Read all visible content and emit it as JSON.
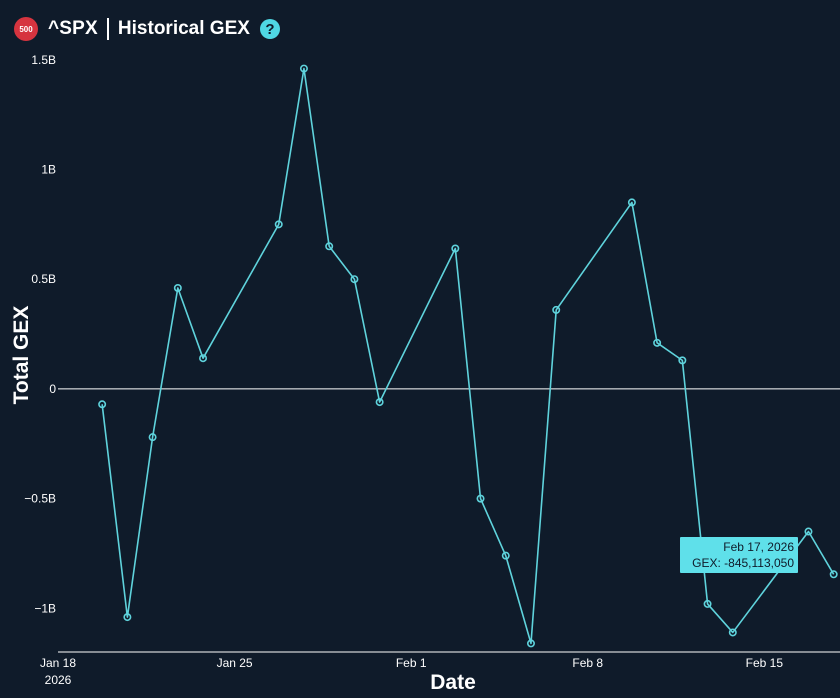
{
  "header": {
    "badge": "500",
    "ticker": "^SPX",
    "title": "Historical GEX",
    "help": "?"
  },
  "colors": {
    "background": "#0f1b2a",
    "line": "#5fd3dc",
    "badge": "#d6343f",
    "help": "#4fd8e4",
    "tooltip_bg": "#5fe0ea",
    "zero_line": "#ffffff"
  },
  "chart_data": {
    "type": "line",
    "title": "",
    "xlabel": "Date",
    "ylabel": "Total GEX",
    "ylim": [
      -1.19,
      1.49
    ],
    "y_unit": "B",
    "yticks": [
      {
        "value": -1,
        "label": "−1B"
      },
      {
        "value": -0.5,
        "label": "−0.5B"
      },
      {
        "value": 0,
        "label": "0"
      },
      {
        "value": 0.5,
        "label": "0.5B"
      },
      {
        "value": 1,
        "label": "1B"
      },
      {
        "value": 1.5,
        "label": "1.5B"
      }
    ],
    "xticks": [
      {
        "date": "2026-01-18",
        "label": "Jan 18",
        "sublabel": "2026"
      },
      {
        "date": "2026-01-25",
        "label": "Jan 25",
        "sublabel": ""
      },
      {
        "date": "2026-02-01",
        "label": "Feb 1",
        "sublabel": ""
      },
      {
        "date": "2026-02-08",
        "label": "Feb 8",
        "sublabel": ""
      },
      {
        "date": "2026-02-15",
        "label": "Feb 15",
        "sublabel": ""
      }
    ],
    "xlim": [
      "2026-01-18",
      "2026-02-18"
    ],
    "grid": false,
    "series": [
      {
        "points": [
          {
            "x": "2026-01-19T18:00",
            "y": -0.07
          },
          {
            "x": "2026-01-20T18:00",
            "y": -1.04
          },
          {
            "x": "2026-01-21T18:00",
            "y": -0.22
          },
          {
            "x": "2026-01-22T18:00",
            "y": 0.46
          },
          {
            "x": "2026-01-23T18:00",
            "y": 0.14
          },
          {
            "x": "2026-01-26T18:00",
            "y": 0.75
          },
          {
            "x": "2026-01-27T18:00",
            "y": 1.46
          },
          {
            "x": "2026-01-28T18:00",
            "y": 0.65
          },
          {
            "x": "2026-01-29T18:00",
            "y": 0.5
          },
          {
            "x": "2026-01-30T18:00",
            "y": -0.06
          },
          {
            "x": "2026-02-02T18:00",
            "y": 0.64
          },
          {
            "x": "2026-02-03T18:00",
            "y": -0.5
          },
          {
            "x": "2026-02-04T18:00",
            "y": -0.76
          },
          {
            "x": "2026-02-05T18:00",
            "y": -1.16
          },
          {
            "x": "2026-02-06T18:00",
            "y": 0.36
          },
          {
            "x": "2026-02-09T18:00",
            "y": 0.85
          },
          {
            "x": "2026-02-10T18:00",
            "y": 0.21
          },
          {
            "x": "2026-02-11T18:00",
            "y": 0.13
          },
          {
            "x": "2026-02-12T18:00",
            "y": -0.98
          },
          {
            "x": "2026-02-13T18:00",
            "y": -1.11
          },
          {
            "x": "2026-02-16T18:00",
            "y": -0.65
          },
          {
            "x": "2026-02-17T18:00",
            "y": -0.845
          }
        ]
      }
    ],
    "tooltip": {
      "date": "Feb 17, 2026",
      "value": "GEX: -845,113,050"
    }
  }
}
